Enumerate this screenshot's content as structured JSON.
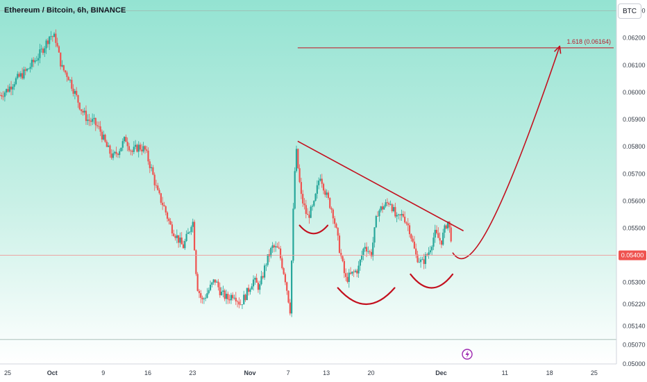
{
  "header": {
    "title": "Ethereum / Bitcoin, 6h, BINANCE",
    "currency_button": "BTC"
  },
  "colors": {
    "bg_top": "#94e3d2",
    "bg_bottom": "#ffffff",
    "up": "#26a69a",
    "down": "#ef5350",
    "drawing": "#c3101e",
    "price_badge": "#ef5350"
  },
  "chart_data": {
    "type": "candlestick",
    "ylim": [
      0.05,
      0.0634
    ],
    "y_ticks": [
      "0.06300",
      "0.06200",
      "0.06100",
      "0.06000",
      "0.05900",
      "0.05800",
      "0.05700",
      "0.05600",
      "0.05500",
      "0.05400",
      "0.05300",
      "0.05220",
      "0.05140",
      "0.05070",
      "0.05000"
    ],
    "y_tick_values": [
      0.063,
      0.062,
      0.061,
      0.06,
      0.059,
      0.058,
      0.057,
      0.056,
      0.055,
      0.054,
      0.053,
      0.0522,
      0.0514,
      0.0507,
      0.05
    ],
    "x_ticks": [
      {
        "label": "25",
        "day": -6,
        "bold": false
      },
      {
        "label": "Oct",
        "day": 1,
        "bold": true
      },
      {
        "label": "9",
        "day": 9,
        "bold": false
      },
      {
        "label": "16",
        "day": 16,
        "bold": false
      },
      {
        "label": "23",
        "day": 23,
        "bold": false
      },
      {
        "label": "Nov",
        "day": 32,
        "bold": true
      },
      {
        "label": "7",
        "day": 38,
        "bold": false
      },
      {
        "label": "13",
        "day": 44,
        "bold": false
      },
      {
        "label": "20",
        "day": 51,
        "bold": false
      },
      {
        "label": "Dec",
        "day": 62,
        "bold": true
      },
      {
        "label": "11",
        "day": 72,
        "bold": false
      },
      {
        "label": "18",
        "day": 79,
        "bold": false
      },
      {
        "label": "25",
        "day": 86,
        "bold": false
      }
    ],
    "x_range_days": [
      -7.2,
      89.5
    ],
    "price_anchors": [
      [
        -7.2,
        0.0599
      ],
      [
        -6,
        0.0601
      ],
      [
        -5,
        0.0604
      ],
      [
        -4,
        0.0606
      ],
      [
        -3,
        0.0608
      ],
      [
        -2,
        0.0611
      ],
      [
        -1,
        0.0614
      ],
      [
        0,
        0.0618
      ],
      [
        0.6,
        0.0621
      ],
      [
        1.5,
        0.062
      ],
      [
        2,
        0.0614
      ],
      [
        2.5,
        0.0609
      ],
      [
        3.5,
        0.0606
      ],
      [
        4.5,
        0.06
      ],
      [
        5.5,
        0.0594
      ],
      [
        6.5,
        0.059
      ],
      [
        7.5,
        0.0589
      ],
      [
        8.5,
        0.0586
      ],
      [
        9.5,
        0.058
      ],
      [
        10.5,
        0.0576
      ],
      [
        11.5,
        0.0579
      ],
      [
        12.5,
        0.0583
      ],
      [
        13.5,
        0.0578
      ],
      [
        14.5,
        0.058
      ],
      [
        15.5,
        0.0579
      ],
      [
        16.5,
        0.0572
      ],
      [
        17.5,
        0.0563
      ],
      [
        18.5,
        0.0558
      ],
      [
        19.5,
        0.0551
      ],
      [
        20.5,
        0.0547
      ],
      [
        21.5,
        0.0543
      ],
      [
        22.5,
        0.0549
      ],
      [
        23,
        0.0554
      ],
      [
        23.7,
        0.0529
      ],
      [
        24.5,
        0.0523
      ],
      [
        25.5,
        0.0527
      ],
      [
        26.5,
        0.0531
      ],
      [
        27.5,
        0.0526
      ],
      [
        28.5,
        0.0524
      ],
      [
        29.5,
        0.0526
      ],
      [
        30.5,
        0.0522
      ],
      [
        31.5,
        0.0526
      ],
      [
        32.5,
        0.0531
      ],
      [
        33.5,
        0.0528
      ],
      [
        34.5,
        0.0537
      ],
      [
        35.5,
        0.0543
      ],
      [
        36.5,
        0.0542
      ],
      [
        37.5,
        0.0532
      ],
      [
        38.3,
        0.052
      ],
      [
        38.8,
        0.0556
      ],
      [
        39.2,
        0.058
      ],
      [
        40,
        0.0562
      ],
      [
        41,
        0.0554
      ],
      [
        42,
        0.0558
      ],
      [
        43,
        0.057
      ],
      [
        44,
        0.0562
      ],
      [
        45,
        0.0556
      ],
      [
        46,
        0.0543
      ],
      [
        47,
        0.0531
      ],
      [
        48,
        0.0533
      ],
      [
        49,
        0.0535
      ],
      [
        50,
        0.0544
      ],
      [
        51,
        0.054
      ],
      [
        52,
        0.0556
      ],
      [
        53,
        0.0558
      ],
      [
        54,
        0.056
      ],
      [
        55,
        0.0553
      ],
      [
        56,
        0.0555
      ],
      [
        57,
        0.055
      ],
      [
        58,
        0.054
      ],
      [
        59,
        0.0537
      ],
      [
        60,
        0.0541
      ],
      [
        61,
        0.0548
      ],
      [
        62,
        0.0545
      ],
      [
        63,
        0.0553
      ],
      [
        63.7,
        0.0545
      ]
    ],
    "drawings": {
      "fib_level": {
        "label": "1.618 (0.06164)",
        "value": 0.06164,
        "from_day": 39.5,
        "to_day": 89.5
      },
      "trendline": {
        "from": [
          39.5,
          0.0582
        ],
        "to": [
          65.5,
          0.0549
        ]
      },
      "left_shoulder": {
        "from_day": 39.8,
        "to_day": 44.2,
        "value": 0.0551,
        "depth": 0.0003
      },
      "head": {
        "from_day": 45.8,
        "to_day": 54.7,
        "value": 0.0528,
        "depth": 0.0006
      },
      "right_shoulder": {
        "from_day": 57.2,
        "to_day": 63.8,
        "value": 0.0533,
        "depth": 0.0005
      },
      "projection": {
        "from": [
          63.8,
          0.0541
        ],
        "to": [
          80.6,
          0.0617
        ]
      }
    },
    "current_price": {
      "value": 0.054,
      "label": "0.05400"
    },
    "session_lines": [
      0.063,
      0.0509
    ]
  }
}
